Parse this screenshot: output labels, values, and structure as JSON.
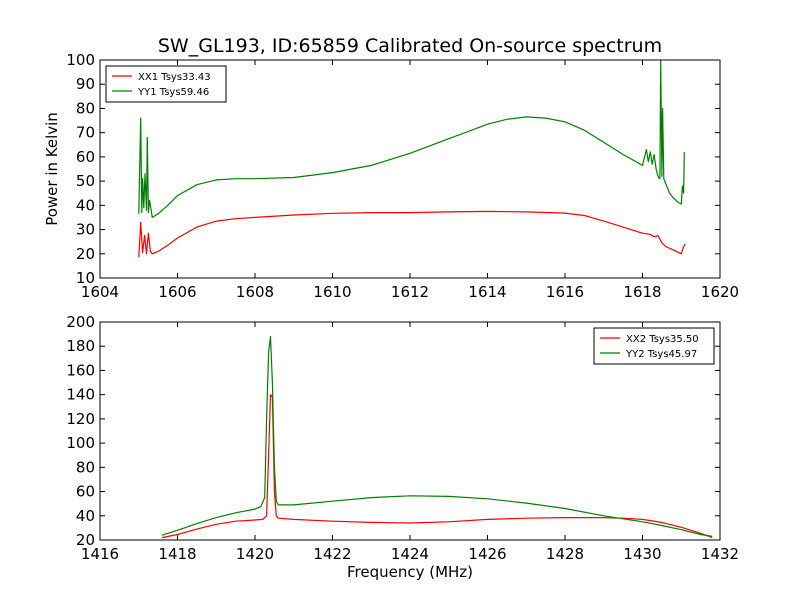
{
  "figure": {
    "title": "SW_GL193, ID:65859 Calibrated On-source spectrum",
    "xlabel": "Frequency (MHz)",
    "ylabel": "Power in Kelvin"
  },
  "chart_data": [
    {
      "type": "line",
      "title": "SW_GL193, ID:65859 Calibrated On-source spectrum",
      "xlabel": "",
      "ylabel": "Power in Kelvin",
      "xlim": [
        1604,
        1620
      ],
      "ylim": [
        10,
        100
      ],
      "xticks": [
        "1604",
        "1606",
        "1608",
        "1610",
        "1612",
        "1614",
        "1616",
        "1618",
        "1620"
      ],
      "yticks": [
        "10",
        "20",
        "30",
        "40",
        "50",
        "60",
        "70",
        "80",
        "90",
        "100"
      ],
      "grid": false,
      "legend_loc": "upper-left",
      "series": [
        {
          "name": "XX1 Tsys33.43",
          "color": "#ff0000",
          "x": [
            1605.0,
            1605.05,
            1605.1,
            1605.15,
            1605.2,
            1605.25,
            1605.3,
            1605.35,
            1605.5,
            1605.75,
            1606.0,
            1606.5,
            1607.0,
            1607.5,
            1608.0,
            1609.0,
            1610.0,
            1611.0,
            1612.0,
            1613.0,
            1614.0,
            1615.0,
            1616.0,
            1616.5,
            1617.0,
            1617.5,
            1618.0,
            1618.2,
            1618.3,
            1618.4,
            1618.5,
            1618.6,
            1618.8,
            1619.0,
            1619.05,
            1619.1
          ],
          "values": [
            18.5,
            33.0,
            20.5,
            27.5,
            20.0,
            28.5,
            21.0,
            20.0,
            21.0,
            23.5,
            26.5,
            31.0,
            33.5,
            34.5,
            35.0,
            36.0,
            36.7,
            37.0,
            37.0,
            37.3,
            37.5,
            37.3,
            36.8,
            35.8,
            33.5,
            31.0,
            28.5,
            28.0,
            27.0,
            27.5,
            24.5,
            23.0,
            21.5,
            20.0,
            22.5,
            24.0
          ]
        },
        {
          "name": "YY1 Tsys59.46",
          "color": "#008000",
          "x": [
            1605.0,
            1605.05,
            1605.08,
            1605.1,
            1605.13,
            1605.16,
            1605.2,
            1605.22,
            1605.25,
            1605.28,
            1605.35,
            1605.5,
            1605.75,
            1606.0,
            1606.5,
            1607.0,
            1607.5,
            1608.0,
            1609.0,
            1610.0,
            1611.0,
            1612.0,
            1613.0,
            1613.5,
            1614.0,
            1614.5,
            1615.0,
            1615.5,
            1616.0,
            1616.5,
            1617.0,
            1617.5,
            1618.0,
            1618.1,
            1618.15,
            1618.2,
            1618.25,
            1618.3,
            1618.35,
            1618.4,
            1618.45,
            1618.47,
            1618.5,
            1618.52,
            1618.55,
            1618.6,
            1618.7,
            1618.8,
            1618.9,
            1619.0,
            1619.03,
            1619.06,
            1619.08
          ],
          "values": [
            36.5,
            76.0,
            37.0,
            51.0,
            39.0,
            53.0,
            38.0,
            68.0,
            37.0,
            42.0,
            35.0,
            36.5,
            40.0,
            44.0,
            48.5,
            50.5,
            51.0,
            51.0,
            51.5,
            53.5,
            56.5,
            61.5,
            67.5,
            70.5,
            73.5,
            75.5,
            76.5,
            76.0,
            74.5,
            71.0,
            66.0,
            61.0,
            56.5,
            63.0,
            58.0,
            62.0,
            57.0,
            61.0,
            55.0,
            52.0,
            51.0,
            100.0,
            52.0,
            80.0,
            51.0,
            49.0,
            45.0,
            43.0,
            41.5,
            40.5,
            48.0,
            45.0,
            62.0
          ]
        }
      ]
    },
    {
      "type": "line",
      "title": "",
      "xlabel": "Frequency (MHz)",
      "ylabel": "",
      "xlim": [
        1416,
        1432
      ],
      "ylim": [
        20,
        200
      ],
      "xticks": [
        "1416",
        "1418",
        "1420",
        "1422",
        "1424",
        "1426",
        "1428",
        "1430",
        "1432"
      ],
      "yticks": [
        "20",
        "40",
        "60",
        "80",
        "100",
        "120",
        "140",
        "160",
        "180",
        "200"
      ],
      "grid": false,
      "legend_loc": "upper-right",
      "series": [
        {
          "name": "XX2 Tsys35.50",
          "color": "#ff0000",
          "x": [
            1417.6,
            1418.0,
            1418.5,
            1419.0,
            1419.5,
            1420.0,
            1420.2,
            1420.3,
            1420.35,
            1420.4,
            1420.45,
            1420.5,
            1420.55,
            1420.6,
            1421.0,
            1422.0,
            1423.0,
            1424.0,
            1425.0,
            1426.0,
            1427.0,
            1428.0,
            1429.0,
            1429.5,
            1430.0,
            1430.5,
            1431.0,
            1431.5,
            1431.8
          ],
          "values": [
            22.0,
            24.5,
            29.0,
            33.0,
            35.5,
            36.5,
            37.0,
            40.0,
            90.0,
            140.0,
            138.0,
            60.0,
            40.0,
            38.0,
            37.0,
            35.5,
            34.5,
            34.0,
            35.0,
            37.0,
            38.0,
            38.5,
            38.5,
            38.0,
            37.0,
            34.5,
            30.5,
            25.5,
            22.0
          ]
        },
        {
          "name": "YY2 Tsys45.97",
          "color": "#008000",
          "x": [
            1417.6,
            1418.0,
            1418.5,
            1419.0,
            1419.5,
            1420.0,
            1420.15,
            1420.25,
            1420.3,
            1420.35,
            1420.4,
            1420.45,
            1420.5,
            1420.55,
            1420.6,
            1421.0,
            1422.0,
            1423.0,
            1424.0,
            1425.0,
            1426.0,
            1427.0,
            1428.0,
            1429.0,
            1429.5,
            1430.0,
            1430.5,
            1431.0,
            1431.5,
            1431.8
          ],
          "values": [
            24.0,
            28.0,
            33.5,
            38.5,
            42.5,
            45.5,
            47.5,
            55.0,
            120.0,
            175.0,
            188.0,
            150.0,
            80.0,
            52.0,
            49.0,
            49.0,
            52.0,
            55.0,
            56.5,
            56.0,
            54.0,
            50.5,
            46.0,
            40.0,
            37.5,
            35.0,
            32.0,
            28.5,
            24.5,
            23.0
          ]
        }
      ]
    }
  ]
}
